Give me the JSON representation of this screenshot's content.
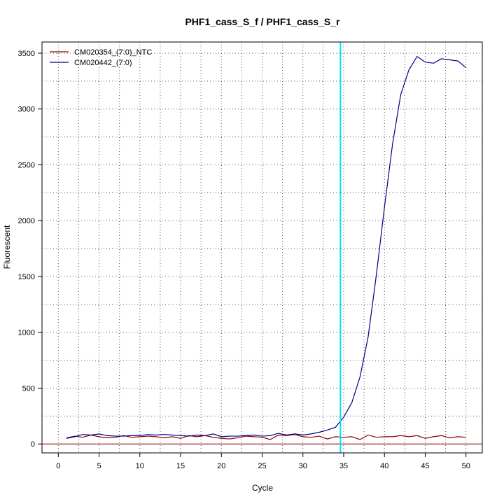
{
  "chart_data": {
    "type": "line",
    "title": "PHF1_cass_S_f / PHF1_cass_S_r",
    "xlabel": "Cycle",
    "ylabel": "Fluorescent",
    "xlim": [
      -2,
      52
    ],
    "ylim": [
      -80,
      3600
    ],
    "x_ticks": [
      0,
      5,
      10,
      15,
      20,
      25,
      30,
      35,
      40,
      45,
      50
    ],
    "y_ticks": [
      0,
      500,
      1000,
      1500,
      2000,
      2500,
      3000,
      3500
    ],
    "grid": true,
    "legend_position": "top-left",
    "threshold_x": 34.6,
    "threshold_color": "#00e5ee",
    "baseline_y": 0,
    "baseline_color": "#8b0000",
    "x": [
      1,
      2,
      3,
      4,
      5,
      6,
      7,
      8,
      9,
      10,
      11,
      12,
      13,
      14,
      15,
      16,
      17,
      18,
      19,
      20,
      21,
      22,
      23,
      24,
      25,
      26,
      27,
      28,
      29,
      30,
      31,
      32,
      33,
      34,
      35,
      36,
      37,
      38,
      39,
      40,
      41,
      42,
      43,
      44,
      45,
      46,
      47,
      48,
      49,
      50
    ],
    "series": [
      {
        "name": "CM020354_(7:0)_NTC",
        "color": "#8b0000",
        "values": [
          55,
          70,
          60,
          80,
          65,
          55,
          60,
          75,
          60,
          65,
          70,
          65,
          55,
          65,
          50,
          75,
          65,
          75,
          60,
          50,
          45,
          55,
          70,
          65,
          60,
          40,
          80,
          75,
          85,
          65,
          60,
          70,
          45,
          65,
          60,
          65,
          40,
          80,
          60,
          65,
          65,
          75,
          65,
          75,
          50,
          65,
          75,
          55,
          65,
          60
        ]
      },
      {
        "name": "CM020442_(7:0)",
        "color": "#00008b",
        "values": [
          50,
          65,
          85,
          80,
          90,
          75,
          70,
          70,
          75,
          75,
          85,
          80,
          85,
          80,
          75,
          70,
          80,
          75,
          90,
          65,
          70,
          70,
          75,
          80,
          70,
          75,
          95,
          80,
          90,
          80,
          90,
          105,
          125,
          150,
          240,
          370,
          600,
          960,
          1510,
          2120,
          2690,
          3130,
          3350,
          3470,
          3420,
          3410,
          3450,
          3440,
          3430,
          3370
        ]
      }
    ]
  }
}
